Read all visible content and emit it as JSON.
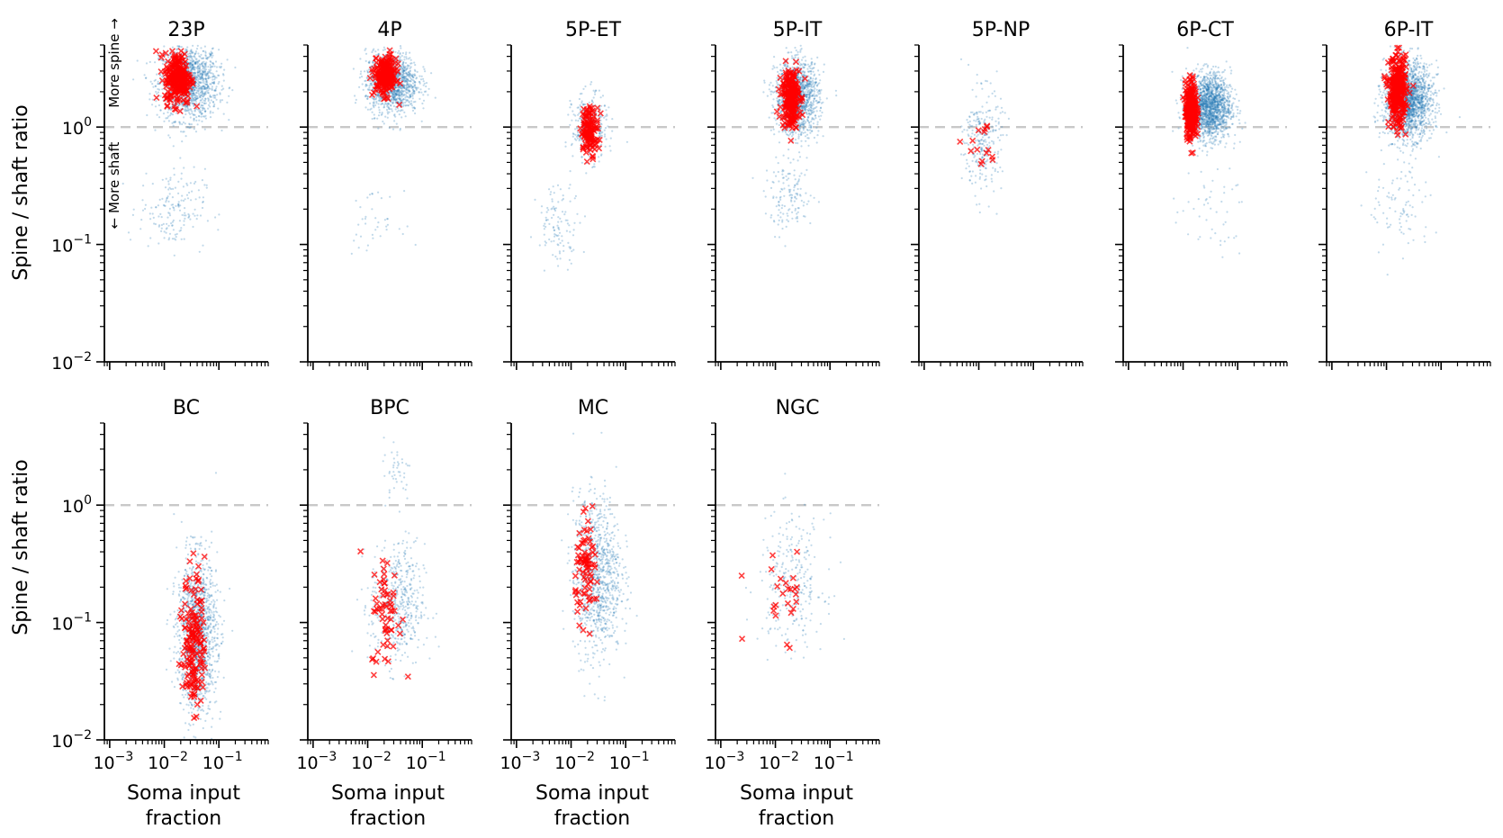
{
  "figure": {
    "ylabel": "Spine / shaft ratio",
    "xlabel_line1": "Soma input",
    "xlabel_line2": "fraction",
    "annotation_up": "More spine →",
    "annotation_down": "← More shaft",
    "reference_line_y": 1.0
  },
  "colors": {
    "population": "#1f77b4",
    "highlight": "#ff0000",
    "reference": "#c8c8c8",
    "axis": "#000000"
  },
  "chart_data": {
    "type": "scatter",
    "xscale": "log",
    "yscale": "log",
    "xlim": [
      0.0008,
      0.8
    ],
    "ylim": [
      0.01,
      5
    ],
    "x_ticks": [
      {
        "value": 0.001,
        "label": "10",
        "exp": "−3"
      },
      {
        "value": 0.01,
        "label": "10",
        "exp": "−2"
      },
      {
        "value": 0.1,
        "label": "10",
        "exp": "−1"
      }
    ],
    "y_ticks": [
      {
        "value": 0.01,
        "label": "10",
        "exp": "−2"
      },
      {
        "value": 0.1,
        "label": "10",
        "exp": "−1"
      },
      {
        "value": 1,
        "label": "10",
        "exp": "0"
      }
    ],
    "series": [
      {
        "marker": "dot",
        "color": "#1f77b4"
      },
      {
        "marker": "x",
        "color": "#ff0000"
      }
    ],
    "panels": [
      {
        "title": "23P",
        "row": 0,
        "col": 0,
        "clusters": [
          {
            "x": 0.028,
            "y": 2.4,
            "sx": 0.27,
            "sy": 0.16,
            "n": 1400
          },
          {
            "x": 0.014,
            "y": 0.2,
            "sx": 0.3,
            "sy": 0.17,
            "n": 170
          }
        ],
        "highlight": {
          "x": 0.018,
          "y": 2.6,
          "sx": 0.12,
          "sy": 0.11,
          "n": 260
        }
      },
      {
        "title": "4P",
        "row": 0,
        "col": 1,
        "clusters": [
          {
            "x": 0.028,
            "y": 2.4,
            "sx": 0.24,
            "sy": 0.13,
            "n": 1200
          },
          {
            "x": 0.012,
            "y": 0.16,
            "sx": 0.25,
            "sy": 0.12,
            "n": 40
          }
        ],
        "highlight": {
          "x": 0.021,
          "y": 2.7,
          "sx": 0.1,
          "sy": 0.08,
          "n": 220
        }
      },
      {
        "title": "5P-ET",
        "row": 0,
        "col": 2,
        "clusters": [
          {
            "x": 0.022,
            "y": 1.0,
            "sx": 0.16,
            "sy": 0.14,
            "n": 320
          },
          {
            "x": 0.006,
            "y": 0.15,
            "sx": 0.2,
            "sy": 0.17,
            "n": 110
          }
        ],
        "highlight": {
          "x": 0.022,
          "y": 0.95,
          "sx": 0.08,
          "sy": 0.1,
          "n": 120
        }
      },
      {
        "title": "5P-IT",
        "row": 0,
        "col": 3,
        "clusters": [
          {
            "x": 0.025,
            "y": 1.8,
            "sx": 0.2,
            "sy": 0.16,
            "n": 1300
          },
          {
            "x": 0.018,
            "y": 0.25,
            "sx": 0.22,
            "sy": 0.14,
            "n": 140
          }
        ],
        "highlight": {
          "x": 0.019,
          "y": 1.8,
          "sx": 0.08,
          "sy": 0.13,
          "n": 230
        }
      },
      {
        "title": "5P-NP",
        "row": 0,
        "col": 4,
        "clusters": [
          {
            "x": 0.012,
            "y": 0.75,
            "sx": 0.17,
            "sy": 0.22,
            "n": 280
          }
        ],
        "highlight": {
          "x": 0.011,
          "y": 0.7,
          "sx": 0.16,
          "sy": 0.15,
          "n": 15
        }
      },
      {
        "title": "6P-CT",
        "row": 0,
        "col": 5,
        "clusters": [
          {
            "x": 0.03,
            "y": 1.5,
            "sx": 0.2,
            "sy": 0.14,
            "n": 1700
          },
          {
            "x": 0.03,
            "y": 0.18,
            "sx": 0.35,
            "sy": 0.2,
            "n": 50
          }
        ],
        "highlight": {
          "x": 0.014,
          "y": 1.4,
          "sx": 0.05,
          "sy": 0.12,
          "n": 280
        }
      },
      {
        "title": "6P-IT",
        "row": 0,
        "col": 6,
        "clusters": [
          {
            "x": 0.025,
            "y": 1.7,
            "sx": 0.22,
            "sy": 0.16,
            "n": 1900
          },
          {
            "x": 0.018,
            "y": 0.2,
            "sx": 0.3,
            "sy": 0.2,
            "n": 90
          }
        ],
        "highlight": {
          "x": 0.016,
          "y": 2.0,
          "sx": 0.08,
          "sy": 0.15,
          "n": 300
        }
      },
      {
        "title": "BC",
        "row": 1,
        "col": 0,
        "clusters": [
          {
            "x": 0.04,
            "y": 0.08,
            "sx": 0.18,
            "sy": 0.32,
            "n": 1400
          }
        ],
        "highlight": {
          "x": 0.035,
          "y": 0.07,
          "sx": 0.1,
          "sy": 0.3,
          "n": 160
        }
      },
      {
        "title": "BPC",
        "row": 1,
        "col": 1,
        "clusters": [
          {
            "x": 0.035,
            "y": 0.14,
            "sx": 0.25,
            "sy": 0.26,
            "n": 500
          },
          {
            "x": 0.035,
            "y": 2.0,
            "sx": 0.13,
            "sy": 0.14,
            "n": 45
          }
        ],
        "highlight": {
          "x": 0.022,
          "y": 0.12,
          "sx": 0.14,
          "sy": 0.25,
          "n": 60
        }
      },
      {
        "title": "MC",
        "row": 1,
        "col": 2,
        "clusters": [
          {
            "x": 0.03,
            "y": 0.25,
            "sx": 0.22,
            "sy": 0.34,
            "n": 950
          }
        ],
        "highlight": {
          "x": 0.02,
          "y": 0.28,
          "sx": 0.11,
          "sy": 0.2,
          "n": 80
        }
      },
      {
        "title": "NGC",
        "row": 1,
        "col": 3,
        "clusters": [
          {
            "x": 0.02,
            "y": 0.22,
            "sx": 0.3,
            "sy": 0.28,
            "n": 280
          }
        ],
        "highlight": {
          "x": 0.013,
          "y": 0.18,
          "sx": 0.3,
          "sy": 0.2,
          "n": 25
        }
      }
    ]
  }
}
